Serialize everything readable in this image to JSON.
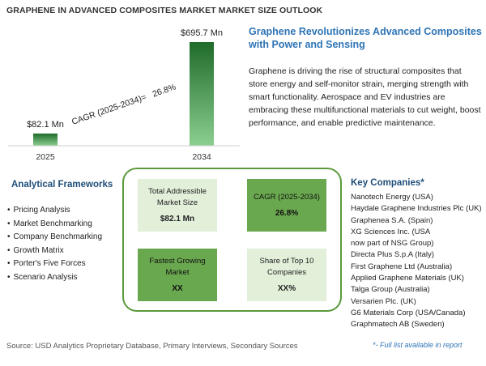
{
  "page_title": "GRAPHENE IN ADVANCED COMPOSITES MARKET MARKET SIZE OUTLOOK",
  "colors": {
    "bar_gradient_top": "#1f6b2a",
    "bar_gradient_bottom": "#8bcf8f",
    "accent_blue": "#2e74b5",
    "frame_green": "#5b9a3c",
    "tile_light": "#e2efd9",
    "tile_dark": "#6aa84f"
  },
  "chart_data": {
    "type": "bar",
    "categories": [
      "2025",
      "2034"
    ],
    "values": [
      82.1,
      695.7
    ],
    "data_labels": [
      "$82.1 Mn",
      "$695.7 Mn"
    ],
    "annotation": "CAGR (2025-2034)=   26.8%",
    "ylim": [
      0,
      695.7
    ],
    "grid": false
  },
  "headline": "Graphene Revolutionizes Advanced Composites with Power and Sensing",
  "description": "Graphene is driving the rise of structural composites that store energy and self-monitor strain, merging strength with smart functionality. Aerospace and EV industries are embracing these multifunctional materials to cut weight, boost performance, and enable predictive maintenance.",
  "frameworks": {
    "title": "Analytical Frameworks",
    "items": [
      "Pricing Analysis",
      "Market Benchmarking",
      "Company Benchmarking",
      "Growth Matrix",
      "Porter's Five Forces",
      "Scenario Analysis"
    ]
  },
  "metrics": {
    "tam": {
      "label": "Total Addressible Market Size",
      "value": "$82.1 Mn"
    },
    "cagr": {
      "label": "CAGR (2025-2034)",
      "value": "26.8%"
    },
    "fastest": {
      "label": "Fastest Growing Market",
      "value": "XX"
    },
    "share": {
      "label": "Share of Top 10 Companies",
      "value": "XX%"
    }
  },
  "companies": {
    "title": "Key Companies*",
    "items": [
      "Nanotech Energy (USA)",
      "Haydale Graphene Industries Plc (UK)",
      "Graphenea S.A. (Spain)",
      "XG Sciences Inc. (USA",
      "now part of NSG Group)",
      "Directa Plus S.p.A (Italy)",
      "First Graphene Ltd (Australia)",
      "Applied Graphene Materials (UK)",
      "Talga Group (Australia)",
      "Versarien Plc. (UK)",
      "G6 Materials Corp (USA/Canada)",
      "Graphmatech AB (Sweden)"
    ],
    "note": "*- Full list available in report"
  },
  "source": "Source: USD Analytics Proprietary Database, Primary Interviews, Secondary Sources"
}
